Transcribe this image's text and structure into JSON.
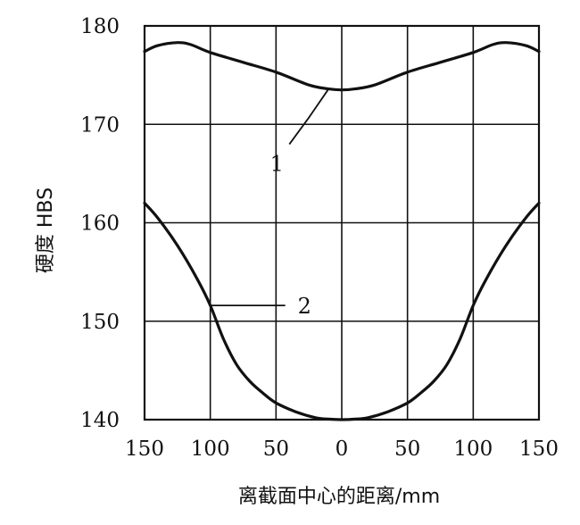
{
  "chart_data": {
    "type": "line",
    "xlabel": "离截面中心的距离/mm",
    "ylabel": "硬度  HBS",
    "ylim": [
      140,
      180
    ],
    "xlim": [
      -150,
      150
    ],
    "x_ticks": [
      {
        "value": -150,
        "label": "150"
      },
      {
        "value": -100,
        "label": "100"
      },
      {
        "value": -50,
        "label": "50"
      },
      {
        "value": 0,
        "label": "0"
      },
      {
        "value": 50,
        "label": "50"
      },
      {
        "value": 100,
        "label": "100"
      },
      {
        "value": 150,
        "label": "150"
      }
    ],
    "y_ticks": [
      {
        "value": 180,
        "label": "180"
      },
      {
        "value": 170,
        "label": "170"
      },
      {
        "value": 160,
        "label": "160"
      },
      {
        "value": 150,
        "label": "150"
      },
      {
        "value": 140,
        "label": "140"
      }
    ],
    "grid": true,
    "series": [
      {
        "name": "1",
        "x": [
          -150,
          -140,
          -125,
          -115,
          -100,
          -75,
          -50,
          -25,
          -10,
          0,
          10,
          25,
          50,
          75,
          100,
          115,
          125,
          140,
          150
        ],
        "y": [
          177.4,
          178.0,
          178.3,
          178.1,
          177.3,
          176.3,
          175.3,
          174.0,
          173.6,
          173.5,
          173.6,
          174.0,
          175.3,
          176.3,
          177.3,
          178.1,
          178.3,
          178.0,
          177.4
        ]
      },
      {
        "name": "2",
        "x": [
          -150,
          -140,
          -125,
          -110,
          -100,
          -90,
          -80,
          -70,
          -60,
          -50,
          -35,
          -20,
          -10,
          0,
          10,
          20,
          35,
          50,
          60,
          70,
          80,
          90,
          100,
          110,
          125,
          140,
          150
        ],
        "y": [
          162.0,
          160.5,
          157.7,
          154.3,
          151.6,
          148.2,
          145.6,
          143.9,
          142.7,
          141.7,
          140.8,
          140.2,
          140.05,
          140.0,
          140.05,
          140.2,
          140.8,
          141.7,
          142.7,
          143.9,
          145.6,
          148.2,
          151.6,
          154.3,
          157.7,
          160.5,
          162.0
        ]
      }
    ],
    "annotations": [
      {
        "series": "1",
        "text": "1"
      },
      {
        "series": "2",
        "text": "2"
      }
    ]
  }
}
